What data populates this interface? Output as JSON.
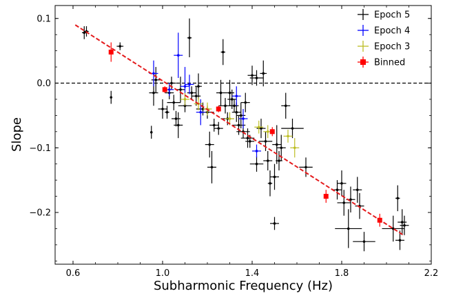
{
  "chart_data": {
    "type": "scatter",
    "title": "",
    "xlabel": "Subharmonic Frequency (Hz)",
    "ylabel": "Slope",
    "xlim": [
      0.52,
      2.2
    ],
    "ylim": [
      -0.28,
      0.12
    ],
    "xticks": [
      0.6,
      1.0,
      1.4,
      1.8,
      2.2
    ],
    "xtick_labels": [
      "0.6",
      "1.0",
      "1.4",
      "1.8",
      "2.2"
    ],
    "yticks": [
      0.1,
      0.0,
      -0.1,
      -0.2
    ],
    "ytick_labels": [
      "0.1",
      "0.0",
      "−0.1",
      "−0.2"
    ],
    "legend_placement": "top-right",
    "grid": false,
    "reference_line": {
      "y": 0.0,
      "style": "dashed",
      "color": "#000000"
    },
    "fit_line": {
      "x": [
        0.61,
        2.08
      ],
      "y": [
        0.09,
        -0.236
      ],
      "style": "dashed",
      "color": "#e41a1c"
    },
    "series": [
      {
        "name": "Epoch 5",
        "color": "#000000",
        "marker": "cross",
        "points": [
          {
            "x": 0.65,
            "y": 0.078,
            "xerr": 0.01,
            "yerr": 0.01
          },
          {
            "x": 0.66,
            "y": 0.08,
            "xerr": 0.01,
            "yerr": 0.008
          },
          {
            "x": 0.77,
            "y": -0.022,
            "xerr": 0.005,
            "yerr": 0.01
          },
          {
            "x": 0.81,
            "y": 0.057,
            "xerr": 0.015,
            "yerr": 0.006
          },
          {
            "x": 0.95,
            "y": -0.076,
            "xerr": 0.005,
            "yerr": 0.01
          },
          {
            "x": 0.96,
            "y": -0.015,
            "xerr": 0.02,
            "yerr": 0.02
          },
          {
            "x": 0.97,
            "y": 0.005,
            "xerr": 0.02,
            "yerr": 0.02
          },
          {
            "x": 1.0,
            "y": -0.04,
            "xerr": 0.02,
            "yerr": 0.015
          },
          {
            "x": 1.02,
            "y": -0.045,
            "xerr": 0.01,
            "yerr": 0.01
          },
          {
            "x": 1.03,
            "y": -0.015,
            "xerr": 0.02,
            "yerr": 0.01
          },
          {
            "x": 1.04,
            "y": 0.0,
            "xerr": 0.02,
            "yerr": 0.01
          },
          {
            "x": 1.05,
            "y": -0.03,
            "xerr": 0.03,
            "yerr": 0.012
          },
          {
            "x": 1.06,
            "y": -0.055,
            "xerr": 0.02,
            "yerr": 0.012
          },
          {
            "x": 1.07,
            "y": -0.065,
            "xerr": 0.02,
            "yerr": 0.02
          },
          {
            "x": 1.08,
            "y": -0.01,
            "xerr": 0.02,
            "yerr": 0.02
          },
          {
            "x": 1.1,
            "y": -0.035,
            "xerr": 0.03,
            "yerr": 0.01
          },
          {
            "x": 1.12,
            "y": 0.07,
            "xerr": 0.01,
            "yerr": 0.03
          },
          {
            "x": 1.13,
            "y": -0.015,
            "xerr": 0.02,
            "yerr": 0.01
          },
          {
            "x": 1.15,
            "y": -0.02,
            "xerr": 0.02,
            "yerr": 0.015
          },
          {
            "x": 1.16,
            "y": -0.005,
            "xerr": 0.015,
            "yerr": 0.02
          },
          {
            "x": 1.18,
            "y": -0.04,
            "xerr": 0.03,
            "yerr": 0.01
          },
          {
            "x": 1.2,
            "y": -0.045,
            "xerr": 0.03,
            "yerr": 0.01
          },
          {
            "x": 1.21,
            "y": -0.095,
            "xerr": 0.02,
            "yerr": 0.02
          },
          {
            "x": 1.22,
            "y": -0.13,
            "xerr": 0.02,
            "yerr": 0.025
          },
          {
            "x": 1.23,
            "y": -0.065,
            "xerr": 0.02,
            "yerr": 0.01
          },
          {
            "x": 1.25,
            "y": -0.07,
            "xerr": 0.02,
            "yerr": 0.01
          },
          {
            "x": 1.26,
            "y": -0.015,
            "xerr": 0.02,
            "yerr": 0.02
          },
          {
            "x": 1.27,
            "y": 0.048,
            "xerr": 0.01,
            "yerr": 0.02
          },
          {
            "x": 1.28,
            "y": -0.035,
            "xerr": 0.03,
            "yerr": 0.012
          },
          {
            "x": 1.29,
            "y": -0.055,
            "xerr": 0.03,
            "yerr": 0.01
          },
          {
            "x": 1.3,
            "y": -0.015,
            "xerr": 0.02,
            "yerr": 0.02
          },
          {
            "x": 1.31,
            "y": -0.025,
            "xerr": 0.02,
            "yerr": 0.015
          },
          {
            "x": 1.32,
            "y": -0.035,
            "xerr": 0.02,
            "yerr": 0.01
          },
          {
            "x": 1.33,
            "y": -0.045,
            "xerr": 0.02,
            "yerr": 0.015
          },
          {
            "x": 1.34,
            "y": -0.065,
            "xerr": 0.03,
            "yerr": 0.015
          },
          {
            "x": 1.35,
            "y": -0.05,
            "xerr": 0.02,
            "yerr": 0.02
          },
          {
            "x": 1.36,
            "y": -0.075,
            "xerr": 0.03,
            "yerr": 0.01
          },
          {
            "x": 1.37,
            "y": -0.03,
            "xerr": 0.02,
            "yerr": 0.015
          },
          {
            "x": 1.38,
            "y": -0.085,
            "xerr": 0.03,
            "yerr": 0.015
          },
          {
            "x": 1.39,
            "y": -0.09,
            "xerr": 0.02,
            "yerr": 0.01
          },
          {
            "x": 1.4,
            "y": 0.012,
            "xerr": 0.02,
            "yerr": 0.015
          },
          {
            "x": 1.42,
            "y": 0.008,
            "xerr": 0.03,
            "yerr": 0.012
          },
          {
            "x": 1.42,
            "y": -0.125,
            "xerr": 0.03,
            "yerr": 0.012
          },
          {
            "x": 1.44,
            "y": -0.07,
            "xerr": 0.02,
            "yerr": 0.015
          },
          {
            "x": 1.45,
            "y": 0.015,
            "xerr": 0.015,
            "yerr": 0.02
          },
          {
            "x": 1.46,
            "y": -0.09,
            "xerr": 0.03,
            "yerr": 0.015
          },
          {
            "x": 1.47,
            "y": -0.12,
            "xerr": 0.02,
            "yerr": 0.015
          },
          {
            "x": 1.48,
            "y": -0.155,
            "xerr": 0.01,
            "yerr": 0.02
          },
          {
            "x": 1.5,
            "y": -0.145,
            "xerr": 0.02,
            "yerr": 0.02
          },
          {
            "x": 1.5,
            "y": -0.217,
            "xerr": 0.02,
            "yerr": 0.01
          },
          {
            "x": 1.51,
            "y": -0.095,
            "xerr": 0.02,
            "yerr": 0.03
          },
          {
            "x": 1.52,
            "y": -0.12,
            "xerr": 0.015,
            "yerr": 0.015
          },
          {
            "x": 1.53,
            "y": -0.1,
            "xerr": 0.02,
            "yerr": 0.02
          },
          {
            "x": 1.55,
            "y": -0.035,
            "xerr": 0.02,
            "yerr": 0.02
          },
          {
            "x": 1.58,
            "y": -0.07,
            "xerr": 0.05,
            "yerr": 0.015
          },
          {
            "x": 1.64,
            "y": -0.13,
            "xerr": 0.03,
            "yerr": 0.015
          },
          {
            "x": 1.78,
            "y": -0.165,
            "xerr": 0.02,
            "yerr": 0.015
          },
          {
            "x": 1.8,
            "y": -0.155,
            "xerr": 0.02,
            "yerr": 0.02
          },
          {
            "x": 1.81,
            "y": -0.185,
            "xerr": 0.03,
            "yerr": 0.02
          },
          {
            "x": 1.83,
            "y": -0.225,
            "xerr": 0.06,
            "yerr": 0.03
          },
          {
            "x": 1.84,
            "y": -0.18,
            "xerr": 0.02,
            "yerr": 0.02
          },
          {
            "x": 1.87,
            "y": -0.165,
            "xerr": 0.02,
            "yerr": 0.02
          },
          {
            "x": 1.88,
            "y": -0.19,
            "xerr": 0.02,
            "yerr": 0.02
          },
          {
            "x": 1.9,
            "y": -0.245,
            "xerr": 0.05,
            "yerr": 0.015
          },
          {
            "x": 2.03,
            "y": -0.225,
            "xerr": 0.05,
            "yerr": 0.02
          },
          {
            "x": 2.05,
            "y": -0.178,
            "xerr": 0.01,
            "yerr": 0.02
          },
          {
            "x": 2.06,
            "y": -0.243,
            "xerr": 0.02,
            "yerr": 0.015
          },
          {
            "x": 2.07,
            "y": -0.215,
            "xerr": 0.02,
            "yerr": 0.02
          },
          {
            "x": 2.08,
            "y": -0.22,
            "xerr": 0.02,
            "yerr": 0.015
          }
        ]
      },
      {
        "name": "Epoch 4",
        "color": "#0000ff",
        "marker": "cross",
        "points": [
          {
            "x": 0.96,
            "y": 0.015,
            "xerr": 0.02,
            "yerr": 0.02
          },
          {
            "x": 1.03,
            "y": -0.01,
            "xerr": 0.02,
            "yerr": 0.01
          },
          {
            "x": 1.07,
            "y": 0.043,
            "xerr": 0.02,
            "yerr": 0.035
          },
          {
            "x": 1.1,
            "y": -0.005,
            "xerr": 0.02,
            "yerr": 0.03
          },
          {
            "x": 1.12,
            "y": -0.002,
            "xerr": 0.02,
            "yerr": 0.015
          },
          {
            "x": 1.17,
            "y": -0.045,
            "xerr": 0.02,
            "yerr": 0.02
          },
          {
            "x": 1.33,
            "y": -0.02,
            "xerr": 0.02,
            "yerr": 0.015
          },
          {
            "x": 1.36,
            "y": -0.055,
            "xerr": 0.02,
            "yerr": 0.015
          },
          {
            "x": 1.42,
            "y": -0.105,
            "xerr": 0.02,
            "yerr": 0.01
          }
        ]
      },
      {
        "name": "Epoch 3",
        "color": "#bcbd22",
        "marker": "cross",
        "points": [
          {
            "x": 1.1,
            "y": -0.025,
            "xerr": 0.02,
            "yerr": 0.01
          },
          {
            "x": 1.16,
            "y": -0.032,
            "xerr": 0.02,
            "yerr": 0.01
          },
          {
            "x": 1.2,
            "y": -0.04,
            "xerr": 0.02,
            "yerr": 0.01
          },
          {
            "x": 1.3,
            "y": -0.055,
            "xerr": 0.02,
            "yerr": 0.01
          },
          {
            "x": 1.43,
            "y": -0.068,
            "xerr": 0.02,
            "yerr": 0.01
          },
          {
            "x": 1.47,
            "y": -0.075,
            "xerr": 0.02,
            "yerr": 0.01
          },
          {
            "x": 1.56,
            "y": -0.082,
            "xerr": 0.02,
            "yerr": 0.01
          },
          {
            "x": 1.59,
            "y": -0.1,
            "xerr": 0.02,
            "yerr": 0.015
          }
        ]
      },
      {
        "name": "Binned",
        "color": "#ff0000",
        "marker": "square",
        "points": [
          {
            "x": 0.77,
            "y": 0.048,
            "xerr": 0,
            "yerr": 0.015
          },
          {
            "x": 1.01,
            "y": -0.01,
            "xerr": 0,
            "yerr": 0.005
          },
          {
            "x": 1.25,
            "y": -0.04,
            "xerr": 0,
            "yerr": 0.005
          },
          {
            "x": 1.49,
            "y": -0.075,
            "xerr": 0,
            "yerr": 0.007
          },
          {
            "x": 1.73,
            "y": -0.175,
            "xerr": 0,
            "yerr": 0.01
          },
          {
            "x": 1.97,
            "y": -0.212,
            "xerr": 0,
            "yerr": 0.01
          }
        ]
      }
    ]
  }
}
